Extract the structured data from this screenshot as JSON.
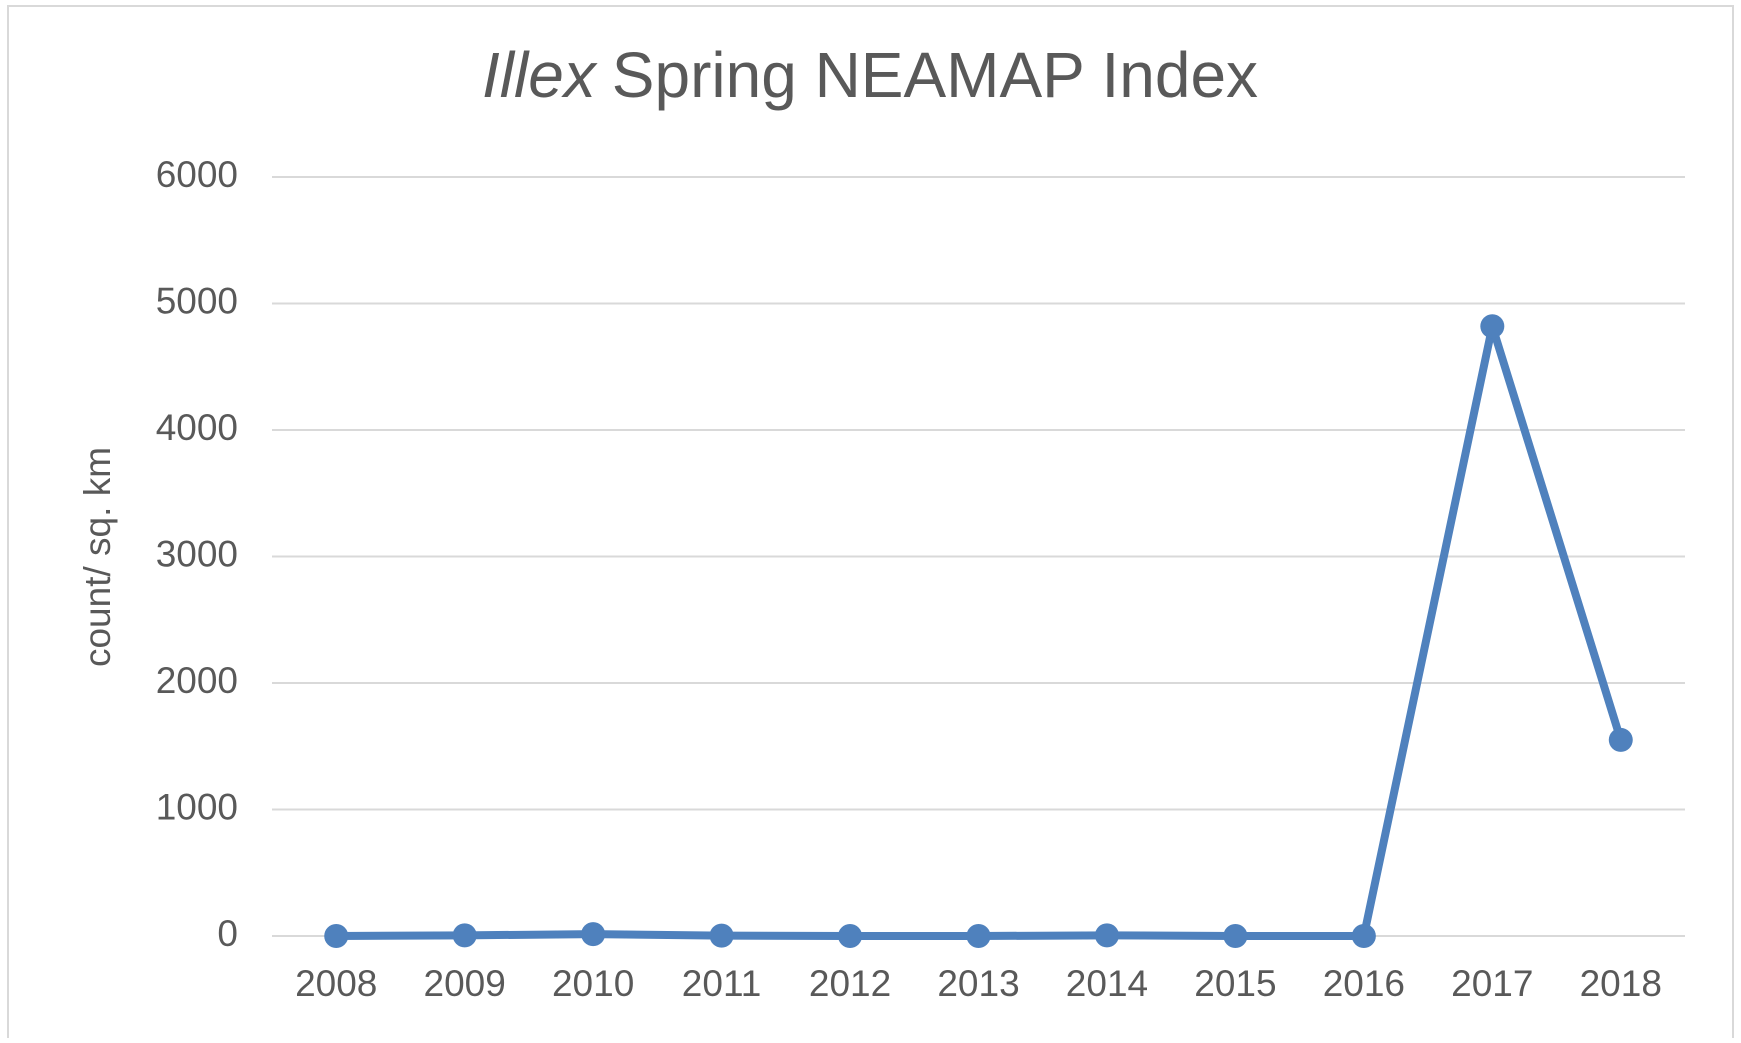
{
  "chart_data": {
    "type": "line",
    "title": [
      "Illex",
      "Spring NEAMAP Index"
    ],
    "y_label": "count/ sq. km",
    "categories": [
      "2008",
      "2009",
      "2010",
      "2011",
      "2012",
      "2013",
      "2014",
      "2015",
      "2016",
      "2017",
      "2018"
    ],
    "series": [
      {
        "name": "Illex",
        "color": "#4f81bd",
        "values": [
          0,
          5,
          15,
          3,
          0,
          0,
          5,
          0,
          0,
          4820,
          1550
        ]
      }
    ],
    "ylim": [
      0,
      6000
    ],
    "yticks": [
      0,
      1000,
      2000,
      3000,
      4000,
      5000,
      6000
    ],
    "grid": true
  }
}
